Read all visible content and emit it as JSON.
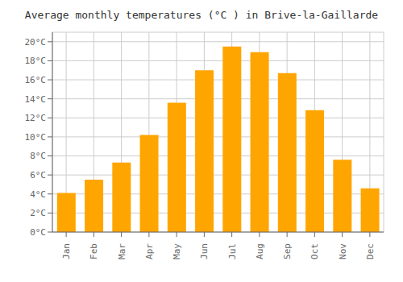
{
  "chart_data": {
    "type": "bar",
    "title": "Average monthly temperatures (°C ) in Brive-la-Gaillarde",
    "categories": [
      "Jan",
      "Feb",
      "Mar",
      "Apr",
      "May",
      "Jun",
      "Jul",
      "Aug",
      "Sep",
      "Oct",
      "Nov",
      "Dec"
    ],
    "values": [
      4.1,
      5.5,
      7.3,
      10.2,
      13.6,
      17.0,
      19.5,
      18.9,
      16.7,
      12.8,
      7.6,
      4.6
    ],
    "color": "#FFA500",
    "ylim": [
      0,
      21
    ],
    "yticks": [
      {
        "value": 0,
        "label": "0°C"
      },
      {
        "value": 2,
        "label": "2°C"
      },
      {
        "value": 4,
        "label": "4°C"
      },
      {
        "value": 6,
        "label": "6°C"
      },
      {
        "value": 8,
        "label": "8°C"
      },
      {
        "value": 10,
        "label": "10°C"
      },
      {
        "value": 12,
        "label": "12°C"
      },
      {
        "value": 14,
        "label": "14°C"
      },
      {
        "value": 16,
        "label": "16°C"
      },
      {
        "value": 18,
        "label": "18°C"
      },
      {
        "value": 20,
        "label": "20°C"
      }
    ],
    "grid": true
  }
}
